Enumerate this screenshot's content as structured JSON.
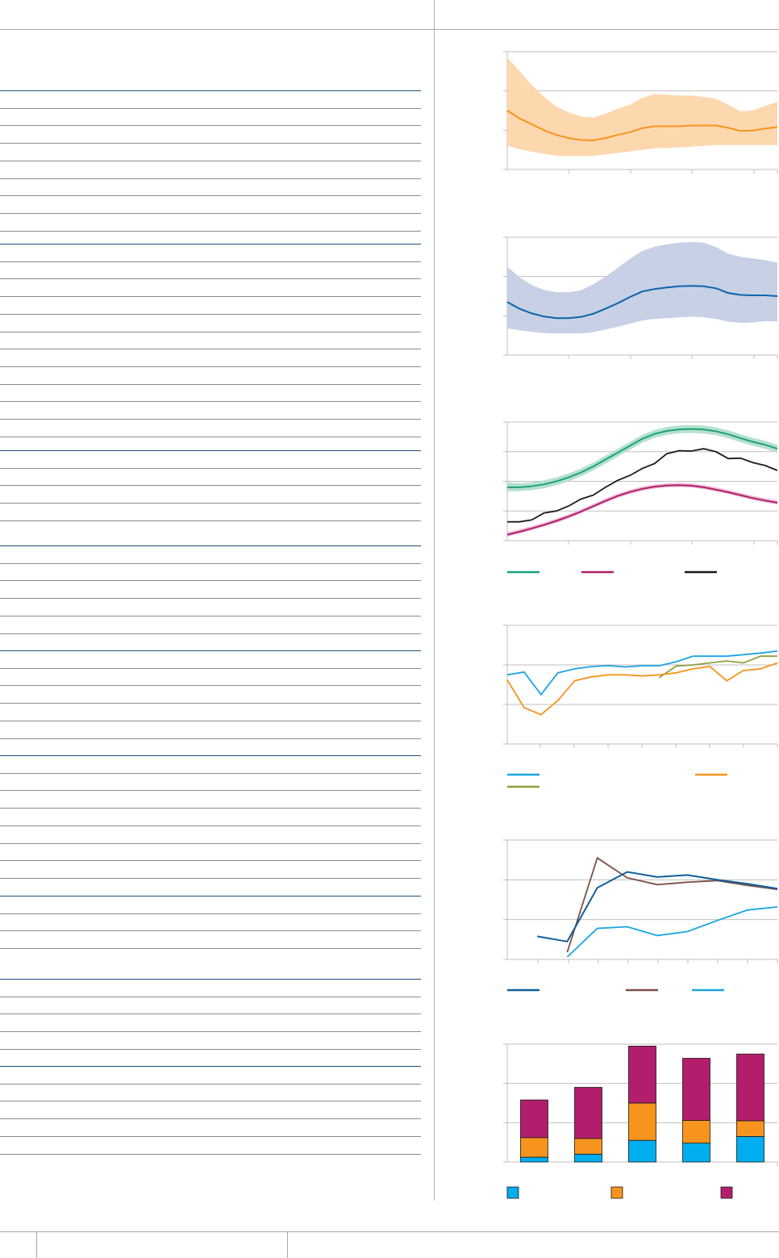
{
  "theme": {
    "header_rule": "#a6a6a6",
    "table_rule": "#8c8c8c",
    "section_rule": "#1f4e79",
    "axis": "#bfbfbf",
    "orange": "#f7941d",
    "orange_band": "#fdd7ae",
    "blue": "#0b64a8",
    "blue_band": "#c7d0e5",
    "green": "#1aa37a",
    "green_band": "#b7e0cd",
    "magenta": "#b21e6b",
    "magenta_band": "#edc1d9",
    "black": "#1a1a1a",
    "cyan": "#1aa5e0",
    "olive": "#8ea03e",
    "brown": "#7b5246",
    "navy": "#115e9c",
    "seg_blue": "#00aeef",
    "seg_orange": "#f7941d",
    "seg_magenta": "#b21e6b"
  },
  "table": {
    "sections": [
      {
        "rows": 8
      },
      {
        "rows": 11
      },
      {
        "rows": 4
      },
      {
        "rows": 5
      },
      {
        "rows": 5
      },
      {
        "rows": 7
      },
      {
        "rows": 3
      },
      {
        "rows": 4
      },
      {
        "rows": 5
      }
    ]
  },
  "chart_data": [
    {
      "type": "line",
      "x": [
        0,
        1,
        2,
        3,
        4,
        5,
        6,
        7,
        8,
        9,
        10,
        11,
        12,
        13,
        14,
        15,
        16,
        17,
        18,
        19,
        20,
        21,
        22
      ],
      "series": [
        {
          "role": "line",
          "values": [
            1.5,
            1.3,
            1.15,
            1.0,
            0.88,
            0.8,
            0.75,
            0.74,
            0.8,
            0.88,
            0.95,
            1.05,
            1.1,
            1.1,
            1.1,
            1.12,
            1.12,
            1.12,
            1.06,
            0.98,
            0.99,
            1.04,
            1.08
          ]
        },
        {
          "role": "band-upper",
          "values": [
            2.85,
            2.5,
            2.15,
            1.85,
            1.6,
            1.45,
            1.35,
            1.32,
            1.42,
            1.55,
            1.65,
            1.82,
            1.92,
            1.9,
            1.88,
            1.88,
            1.85,
            1.8,
            1.65,
            1.48,
            1.5,
            1.62,
            1.72
          ]
        },
        {
          "role": "band-lower",
          "values": [
            0.6,
            0.52,
            0.45,
            0.4,
            0.35,
            0.34,
            0.34,
            0.35,
            0.38,
            0.42,
            0.46,
            0.5,
            0.54,
            0.55,
            0.56,
            0.58,
            0.6,
            0.62,
            0.62,
            0.62,
            0.62,
            0.62,
            0.62
          ]
        }
      ],
      "ylim": [
        0,
        3
      ]
    },
    {
      "type": "line",
      "x": [
        0,
        1,
        2,
        3,
        4,
        5,
        6,
        7,
        8,
        9,
        10,
        11,
        12,
        13,
        14,
        15,
        16,
        17,
        18,
        19,
        20,
        21,
        22
      ],
      "series": [
        {
          "role": "line",
          "values": [
            1.35,
            1.18,
            1.06,
            0.98,
            0.94,
            0.94,
            0.97,
            1.05,
            1.18,
            1.32,
            1.48,
            1.62,
            1.68,
            1.72,
            1.75,
            1.76,
            1.75,
            1.7,
            1.58,
            1.53,
            1.52,
            1.52,
            1.5
          ]
        },
        {
          "role": "band-upper",
          "values": [
            2.25,
            1.98,
            1.78,
            1.66,
            1.6,
            1.6,
            1.65,
            1.8,
            2.0,
            2.22,
            2.45,
            2.65,
            2.76,
            2.82,
            2.86,
            2.88,
            2.86,
            2.75,
            2.58,
            2.5,
            2.46,
            2.42,
            2.35
          ]
        },
        {
          "role": "band-lower",
          "values": [
            0.68,
            0.63,
            0.59,
            0.56,
            0.55,
            0.55,
            0.55,
            0.58,
            0.65,
            0.72,
            0.8,
            0.88,
            0.92,
            0.94,
            0.96,
            0.98,
            0.96,
            0.92,
            0.85,
            0.82,
            0.83,
            0.86,
            0.86
          ]
        }
      ],
      "ylim": [
        0,
        3
      ]
    },
    {
      "type": "line",
      "x": [
        0,
        1,
        2,
        3,
        4,
        5,
        6,
        7,
        8,
        9,
        10,
        11,
        12,
        13,
        14,
        15,
        16,
        17,
        18,
        19,
        20,
        21,
        22
      ],
      "series": [
        {
          "role": "green",
          "values": [
            27,
            27,
            27.5,
            28.5,
            30,
            32,
            34.5,
            37.5,
            41,
            44.5,
            48,
            51.5,
            54,
            55.5,
            56.3,
            56.5,
            56.2,
            55.3,
            53.8,
            51.8,
            50,
            48.5,
            46.5
          ]
        },
        {
          "role": "green-upper",
          "values": [
            29.5,
            29,
            29.5,
            30.5,
            32,
            34,
            36.5,
            39.5,
            43,
            46.5,
            50,
            53.5,
            56,
            57.5,
            58.3,
            58.5,
            58.2,
            57.3,
            55.8,
            53.8,
            52,
            50.5,
            48.5
          ]
        },
        {
          "role": "green-lower",
          "values": [
            25,
            25,
            25.5,
            26.5,
            28,
            30,
            32.5,
            35.5,
            39,
            42.5,
            46,
            49.5,
            52,
            53.5,
            54.3,
            54.5,
            54.2,
            53.3,
            51.8,
            49.8,
            48,
            46.5,
            44.5
          ]
        },
        {
          "role": "magenta",
          "values": [
            3,
            4.5,
            6.2,
            8,
            10,
            12.2,
            14.7,
            17.4,
            20.1,
            22.6,
            24.6,
            26.2,
            27.3,
            27.9,
            28.1,
            27.8,
            27,
            25.8,
            24.5,
            23,
            21.5,
            20.3,
            19.2
          ]
        },
        {
          "role": "magenta-upper",
          "values": [
            4.2,
            5.7,
            7.4,
            9.2,
            11.2,
            13.4,
            15.9,
            18.6,
            21.3,
            23.8,
            25.8,
            27.4,
            28.5,
            29.1,
            29.3,
            29,
            28.2,
            27,
            25.7,
            24.2,
            22.7,
            21.5,
            20.4
          ]
        },
        {
          "role": "magenta-lower",
          "values": [
            2,
            3.5,
            5.2,
            7,
            9,
            11.2,
            13.7,
            16.4,
            19.1,
            21.6,
            23.6,
            25.2,
            26.3,
            26.9,
            27.1,
            26.8,
            26,
            24.8,
            23.5,
            22,
            20.5,
            19.3,
            18.2
          ]
        },
        {
          "role": "black",
          "values": [
            9.5,
            9.5,
            10.5,
            14,
            15,
            17.5,
            21,
            23,
            27,
            30.5,
            33,
            36.5,
            39,
            44,
            45.5,
            45.3,
            46.5,
            45,
            41.5,
            41.7,
            39.5,
            38,
            35.5
          ]
        }
      ],
      "ylim": [
        0,
        60
      ]
    },
    {
      "type": "line",
      "x": [
        0,
        1,
        2,
        3,
        4,
        5,
        6,
        7,
        8,
        9,
        10,
        11,
        12,
        13,
        14,
        15,
        16
      ],
      "series": [
        {
          "role": "cyan",
          "values": [
            1.75,
            1.82,
            1.25,
            1.8,
            1.9,
            1.96,
            1.98,
            1.95,
            1.98,
            1.98,
            2.08,
            2.22,
            2.22,
            2.22,
            2.26,
            2.3,
            2.35
          ]
        },
        {
          "role": "orange",
          "values": [
            1.62,
            0.92,
            0.74,
            1.1,
            1.6,
            1.7,
            1.75,
            1.75,
            1.72,
            1.75,
            1.8,
            1.9,
            1.96,
            1.6,
            1.86,
            1.9,
            2.05
          ]
        },
        {
          "role": "olive",
          "values": [
            null,
            null,
            null,
            null,
            null,
            null,
            null,
            null,
            null,
            1.68,
            1.97,
            2.0,
            2.05,
            2.1,
            2.05,
            2.22,
            2.22
          ]
        }
      ],
      "ylim": [
        0,
        3
      ]
    },
    {
      "type": "line",
      "x": [
        0,
        1,
        2,
        3,
        4,
        5,
        6,
        7,
        8,
        9
      ],
      "series": [
        {
          "role": "navy",
          "values": [
            null,
            0.58,
            0.45,
            1.8,
            2.2,
            2.07,
            2.12,
            2.0,
            1.9,
            1.78
          ]
        },
        {
          "role": "brown",
          "values": [
            null,
            null,
            0.18,
            2.55,
            2.05,
            1.88,
            1.94,
            1.98,
            1.86,
            1.76
          ]
        },
        {
          "role": "cyan",
          "values": [
            null,
            null,
            0.06,
            0.78,
            0.82,
            0.6,
            0.7,
            0.98,
            1.24,
            1.32
          ]
        }
      ],
      "ylim": [
        0,
        3
      ]
    },
    {
      "type": "bar",
      "stacked": true,
      "categories": [
        "",
        "",
        "",
        "",
        ""
      ],
      "series": [
        {
          "role": "blue",
          "values": [
            0.12,
            0.2,
            0.55,
            0.48,
            0.65
          ]
        },
        {
          "role": "orange",
          "values": [
            0.5,
            0.4,
            0.95,
            0.58,
            0.4
          ]
        },
        {
          "role": "magenta",
          "values": [
            0.96,
            1.3,
            1.45,
            1.58,
            1.7
          ]
        }
      ],
      "ylim": [
        0,
        3
      ]
    }
  ]
}
